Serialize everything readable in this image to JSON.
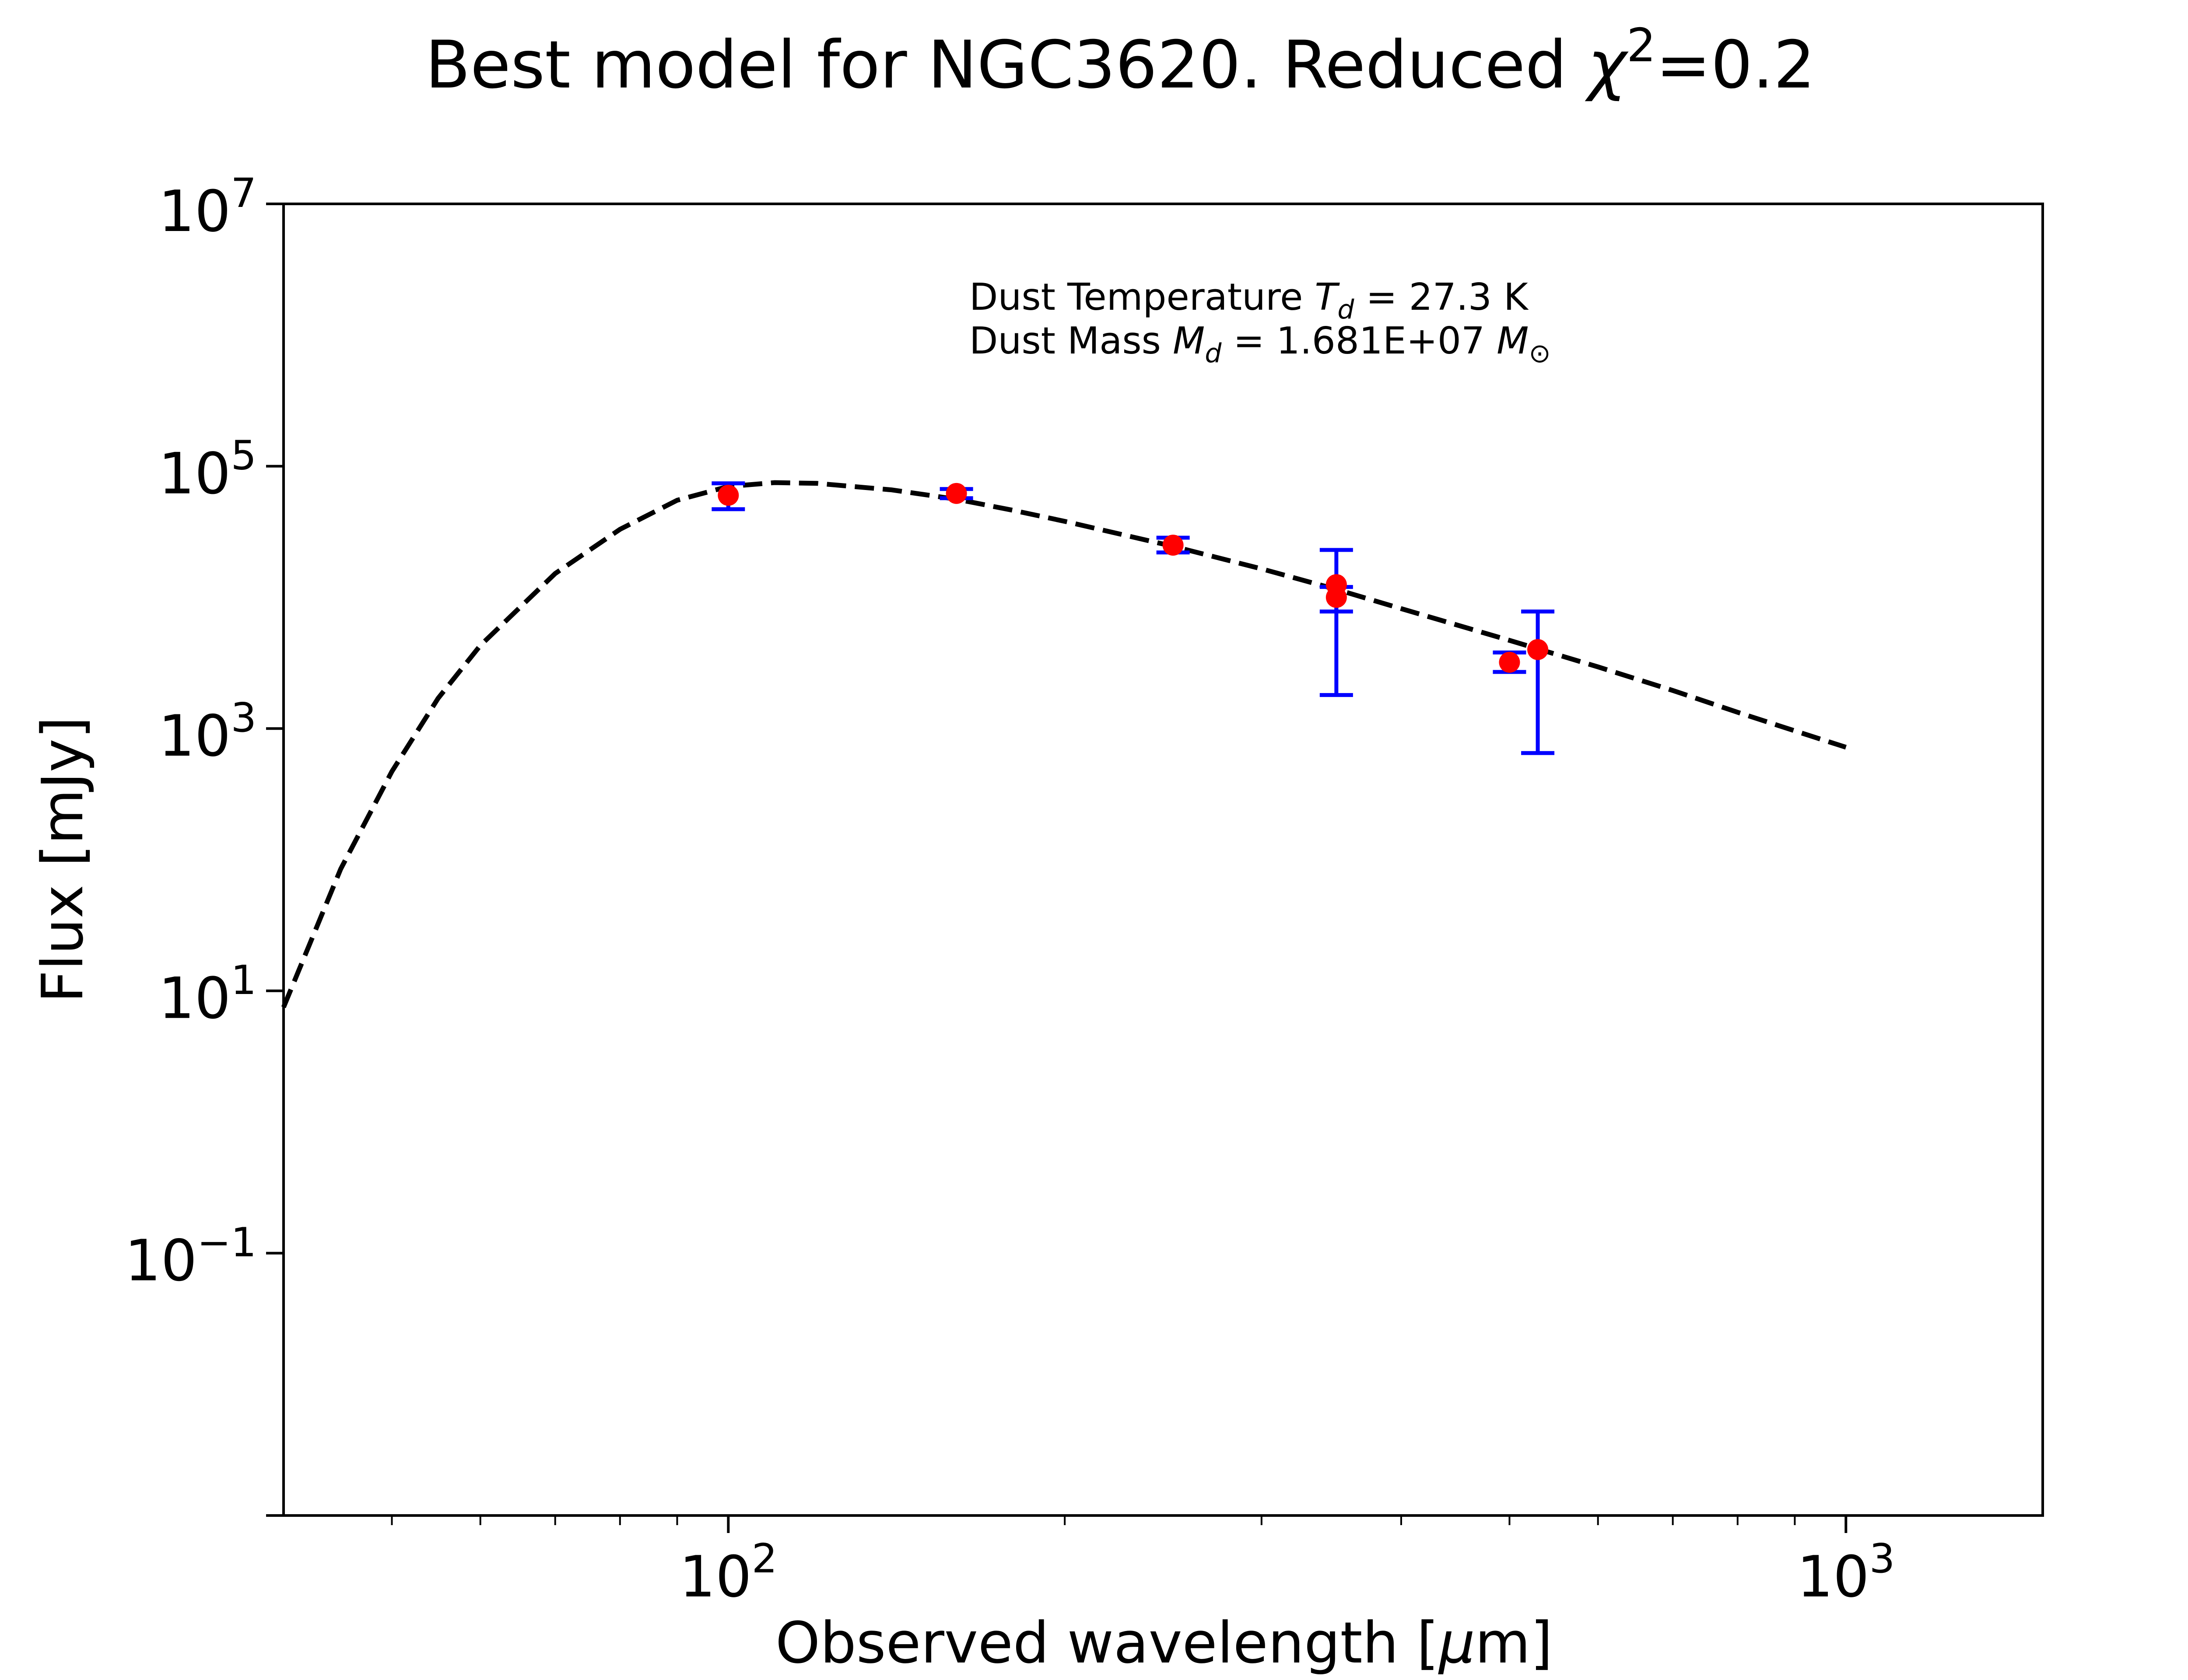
{
  "chart_data": {
    "type": "scatter",
    "title": {
      "prefix": "Best model for NGC3620. Reduced ",
      "chi": "χ",
      "sup": "2",
      "suffix": "=0.2"
    },
    "xlabel": {
      "prefix": "Observed wavelength [",
      "mu": "μ",
      "suffix": "m]"
    },
    "ylabel": "Flux [mJy]",
    "xscale": "log",
    "yscale": "log",
    "xlim": [
      40,
      1500
    ],
    "ylim": [
      0.001,
      10000000
    ],
    "x_ticks": [
      {
        "value": 100,
        "base": "10",
        "exp": "2"
      },
      {
        "value": 1000,
        "base": "10",
        "exp": "3"
      }
    ],
    "x_minor_ticks": [
      50,
      60,
      70,
      80,
      90,
      200,
      300,
      400,
      500,
      600,
      700,
      800,
      900
    ],
    "y_ticks": [
      {
        "value": 0.1,
        "base": "10",
        "exp": "−1"
      },
      {
        "value": 10,
        "base": "10",
        "exp": "1"
      },
      {
        "value": 1000,
        "base": "10",
        "exp": "3"
      },
      {
        "value": 100000,
        "base": "10",
        "exp": "5"
      },
      {
        "value": 10000000,
        "base": "10",
        "exp": "7"
      }
    ],
    "y_unlabeled_ticks": [
      0.001
    ],
    "annotation": {
      "temp": {
        "prefix": "Dust Temperature ",
        "sym": "T",
        "sub": "d",
        "suffix": " = 27.3 K"
      },
      "mass": {
        "prefix": "Dust Mass ",
        "sym": "M",
        "sub": "d",
        "mid": " = 1.681E+07 ",
        "unit": "M",
        "unit_sub": "⊙"
      }
    },
    "model": {
      "name": "model",
      "style": "dashed",
      "color": "#000000",
      "x": [
        40,
        45,
        50,
        55,
        60,
        70,
        80,
        90,
        100,
        110,
        120,
        140,
        160,
        180,
        200,
        250,
        300,
        350,
        400,
        500,
        600,
        700,
        800,
        900,
        1000
      ],
      "y": [
        7.5,
        85,
        470,
        1700,
        4300,
        15200,
        33000,
        55000,
        70000,
        75000,
        74000,
        66000,
        56000,
        46000,
        38000,
        24500,
        16500,
        11500,
        8200,
        4700,
        2950,
        1950,
        1330,
        960,
        720
      ]
    },
    "observations": {
      "name": "observations",
      "marker_color": "#ff0000",
      "errorbar_color": "#0000ff",
      "points": [
        {
          "x": 100,
          "y": 60000,
          "yerr_low": 47000,
          "yerr_high": 74000
        },
        {
          "x": 160,
          "y": 62000,
          "yerr_low": 57000,
          "yerr_high": 67000
        },
        {
          "x": 250,
          "y": 25000,
          "yerr_low": 22000,
          "yerr_high": 28500
        },
        {
          "x": 350,
          "y": 12500,
          "yerr_low": 7800,
          "yerr_high": 12000
        },
        {
          "x": 350,
          "y": 10000,
          "yerr_low": 1800,
          "yerr_high": 23000
        },
        {
          "x": 500,
          "y": 3200,
          "yerr_low": 2700,
          "yerr_high": 3800
        },
        {
          "x": 530,
          "y": 4000,
          "yerr_low": 650,
          "yerr_high": 7800
        }
      ]
    }
  }
}
